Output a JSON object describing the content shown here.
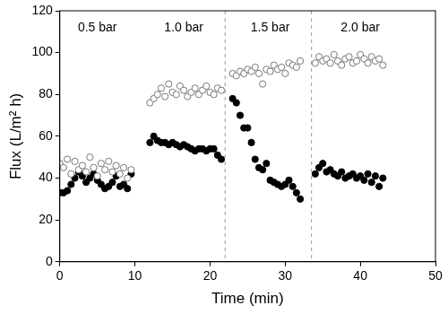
{
  "chart_data": {
    "type": "scatter",
    "x_label": "Time (min)",
    "y_label": "Flux (L/m² h)",
    "x": [
      0,
      0.5,
      1,
      1.5,
      2,
      2.5,
      3,
      3.5,
      4,
      4.5,
      5,
      5.5,
      6,
      6.5,
      7,
      7.5,
      8,
      8.5,
      9,
      9.5,
      12,
      12.5,
      13,
      13.5,
      14,
      14.5,
      15,
      15.5,
      16,
      16.5,
      17,
      17.5,
      18,
      18.5,
      19,
      19.5,
      20,
      20.5,
      21,
      21.5,
      23,
      23.5,
      24,
      24.5,
      25,
      25.5,
      26,
      26.5,
      27,
      27.5,
      28,
      28.5,
      29,
      29.5,
      30,
      30.5,
      31,
      31.5,
      32,
      34,
      34.5,
      35,
      35.5,
      36,
      36.5,
      37,
      37.5,
      38,
      38.5,
      39,
      39.5,
      40,
      40.5,
      41,
      41.5,
      42,
      42.5,
      43
    ],
    "series": [
      {
        "color": "#777777",
        "marker": "open-circle",
        "values": [
          47,
          45,
          49,
          42,
          48,
          44,
          46,
          43,
          50,
          45,
          41,
          47,
          44,
          48,
          43,
          46,
          42,
          45,
          40,
          44,
          76,
          78,
          80,
          83,
          79,
          85,
          81,
          80,
          84,
          82,
          79,
          81,
          83,
          80,
          82,
          84,
          81,
          80,
          83,
          82,
          90,
          89,
          91,
          90,
          92,
          91,
          93,
          90,
          85,
          92,
          91,
          94,
          92,
          93,
          90,
          95,
          94,
          93,
          96,
          95,
          98,
          96,
          97,
          95,
          99,
          96,
          94,
          97,
          98,
          95,
          96,
          99,
          97,
          95,
          98,
          96,
          97,
          94
        ]
      },
      {
        "color": "#000000",
        "marker": "circle",
        "values": [
          33,
          33,
          34,
          37,
          40,
          43,
          41,
          38,
          40,
          42,
          39,
          37,
          35,
          36,
          38,
          41,
          36,
          37,
          35,
          42,
          57,
          60,
          58,
          57,
          57,
          56,
          57,
          56,
          55,
          56,
          55,
          54,
          53,
          54,
          54,
          53,
          54,
          54,
          51,
          49,
          78,
          76,
          70,
          64,
          64,
          57,
          49,
          45,
          44,
          47,
          39,
          38,
          37,
          36,
          37,
          39,
          36,
          33,
          30,
          42,
          45,
          47,
          43,
          44,
          42,
          41,
          43,
          40,
          41,
          42,
          40,
          41,
          39,
          42,
          38,
          41,
          36,
          40
        ]
      }
    ],
    "xlim": [
      0,
      50
    ],
    "xticks": [
      0,
      10,
      20,
      30,
      40,
      50
    ],
    "ylim": [
      0,
      120
    ],
    "yticks": [
      0,
      20,
      40,
      60,
      80,
      100,
      120
    ],
    "grid": false,
    "vlines": [
      22,
      33.5
    ],
    "annotations": [
      {
        "text": "0.5 bar",
        "x": 5,
        "y": 112
      },
      {
        "text": "1.0 bar",
        "x": 16.5,
        "y": 112
      },
      {
        "text": "1.5 bar",
        "x": 28,
        "y": 112
      },
      {
        "text": "2.0 bar",
        "x": 40,
        "y": 112
      }
    ]
  }
}
